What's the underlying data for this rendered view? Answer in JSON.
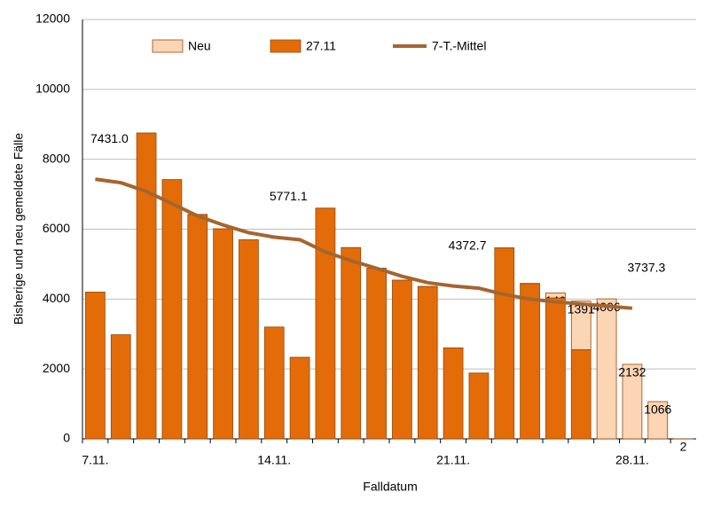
{
  "chart_data": {
    "type": "stacked_bar_line",
    "y_label": "Bisherige und neu gemeldete Fälle",
    "x_label": "Falldatum",
    "categories": [
      "7.11.",
      null,
      null,
      null,
      null,
      null,
      null,
      "14.11.",
      null,
      null,
      null,
      null,
      null,
      null,
      "21.11.",
      null,
      null,
      null,
      null,
      null,
      null,
      "28.11.",
      null,
      null
    ],
    "series": [
      {
        "name": "Neu",
        "color": "#fcd5b5",
        "stack_on": "27.11",
        "values": [
          null,
          null,
          1,
          null,
          4,
          1,
          null,
          null,
          2,
          2,
          4,
          2,
          1,
          1,
          4,
          3,
          6,
          9,
          146,
          1391,
          4006,
          2132,
          1066,
          2
        ]
      },
      {
        "name": "27.11",
        "color": "#e36c09",
        "values": [
          4200,
          2980,
          8750,
          7420,
          6420,
          6010,
          5700,
          3200,
          2330,
          6600,
          5470,
          4880,
          4540,
          4360,
          2600,
          1880,
          5460,
          4440,
          4030,
          2550,
          0,
          0,
          0,
          0
        ]
      },
      {
        "name": "7-T.-Mittel",
        "color": "#a5652f",
        "kind": "line",
        "values": [
          7431.0,
          7330,
          7080,
          6730,
          6380,
          6120,
          5900,
          5771.1,
          5700,
          5350,
          5100,
          4880,
          4650,
          4470,
          4372.7,
          4310,
          4130,
          4000,
          3920,
          3860,
          3800,
          3737.3,
          null,
          null
        ],
        "value_labels": [
          "7431.0",
          null,
          null,
          null,
          null,
          null,
          null,
          "5771.1",
          null,
          null,
          null,
          null,
          null,
          null,
          "4372.7",
          null,
          null,
          null,
          null,
          null,
          null,
          "3737.3",
          null,
          null
        ]
      }
    ],
    "ylim": [
      0,
      12000
    ],
    "yticks": [
      0,
      2000,
      4000,
      6000,
      8000,
      10000,
      12000
    ],
    "grid": true,
    "legend": "top"
  }
}
